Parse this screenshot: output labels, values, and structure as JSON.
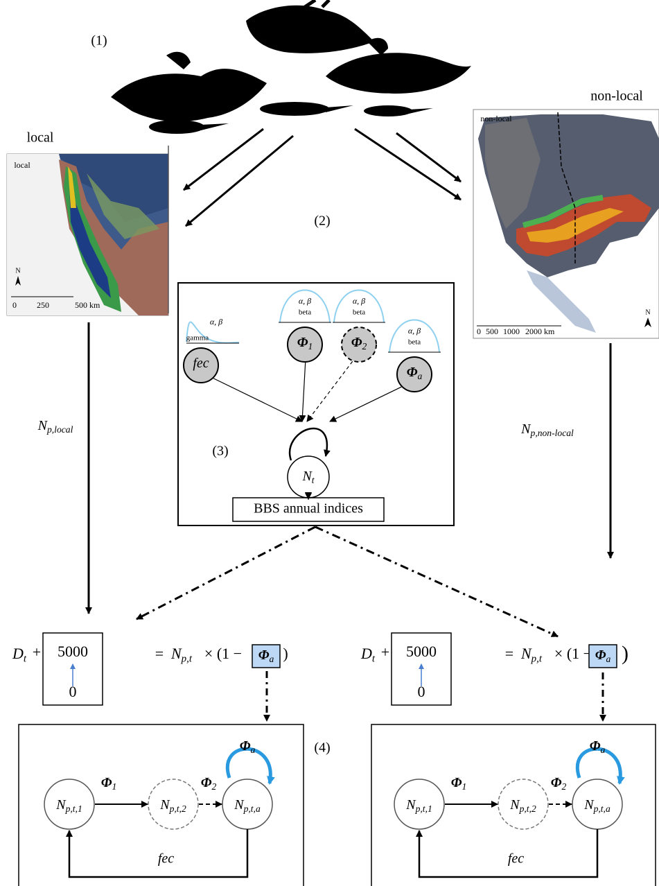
{
  "panel_labels": [
    "(1)",
    "(2)",
    "(3)",
    "(4)"
  ],
  "map_local": {
    "title": "local",
    "inset_label": "local",
    "north": "N",
    "scale": [
      "0",
      "250",
      "500 km"
    ]
  },
  "map_nonlocal": {
    "title": "non-local",
    "inset_label": "non-local",
    "north": "N",
    "scale": [
      "0",
      "500",
      "1000",
      "2000 km"
    ]
  },
  "flows": [
    {
      "base": "N",
      "sub": "p,local"
    },
    {
      "base": "N",
      "sub": "p,non-local"
    }
  ],
  "model": {
    "priors": [
      {
        "params": "α, β",
        "dist": "gamma"
      },
      {
        "params": "α, β",
        "dist": "beta"
      },
      {
        "params": "α, β",
        "dist": "beta"
      },
      {
        "params": "α, β",
        "dist": "beta"
      }
    ],
    "nodes": [
      {
        "base": "fec"
      },
      {
        "base": "Φ",
        "sub": "1"
      },
      {
        "base": "Φ",
        "sub": "2"
      },
      {
        "base": "Φ",
        "sub": "a"
      }
    ],
    "state": {
      "base": "N",
      "sub": "t"
    },
    "data": "BBS annual indices"
  },
  "equations": [
    {
      "lhs": {
        "base": "D",
        "sub": "t"
      },
      "plus": "+",
      "range_max": "5000",
      "range_min": "0",
      "equals": "=",
      "n": {
        "base": "N",
        "sub": "p,t"
      },
      "times": "× (1 −",
      "phi": {
        "base": "Φ",
        "sub": "a"
      },
      "close": ")"
    },
    {
      "lhs": {
        "base": "D",
        "sub": "t"
      },
      "plus": "+",
      "range_max": "5000",
      "range_min": "0",
      "equals": "=",
      "n": {
        "base": "N",
        "sub": "p,t"
      },
      "times": "× (1 −",
      "phi": {
        "base": "Φ",
        "sub": "a"
      },
      "close": ")"
    }
  ],
  "matrix_models": [
    {
      "nodes": [
        {
          "base": "N",
          "sub": "p,t,1"
        },
        {
          "base": "N",
          "sub": "p,t,2"
        },
        {
          "base": "N",
          "sub": "p,t,a"
        }
      ],
      "edges": [
        {
          "base": "Φ",
          "sub": "1"
        },
        {
          "base": "Φ",
          "sub": "2"
        },
        {
          "base": "Φ",
          "sub": "a"
        }
      ],
      "fecundity": "fec"
    },
    {
      "nodes": [
        {
          "base": "N",
          "sub": "p,t,1"
        },
        {
          "base": "N",
          "sub": "p,t,2"
        },
        {
          "base": "N",
          "sub": "p,t,a"
        }
      ],
      "edges": [
        {
          "base": "Φ",
          "sub": "1"
        },
        {
          "base": "Φ",
          "sub": "2"
        },
        {
          "base": "Φ",
          "sub": "a"
        }
      ],
      "fecundity": "fec"
    }
  ]
}
